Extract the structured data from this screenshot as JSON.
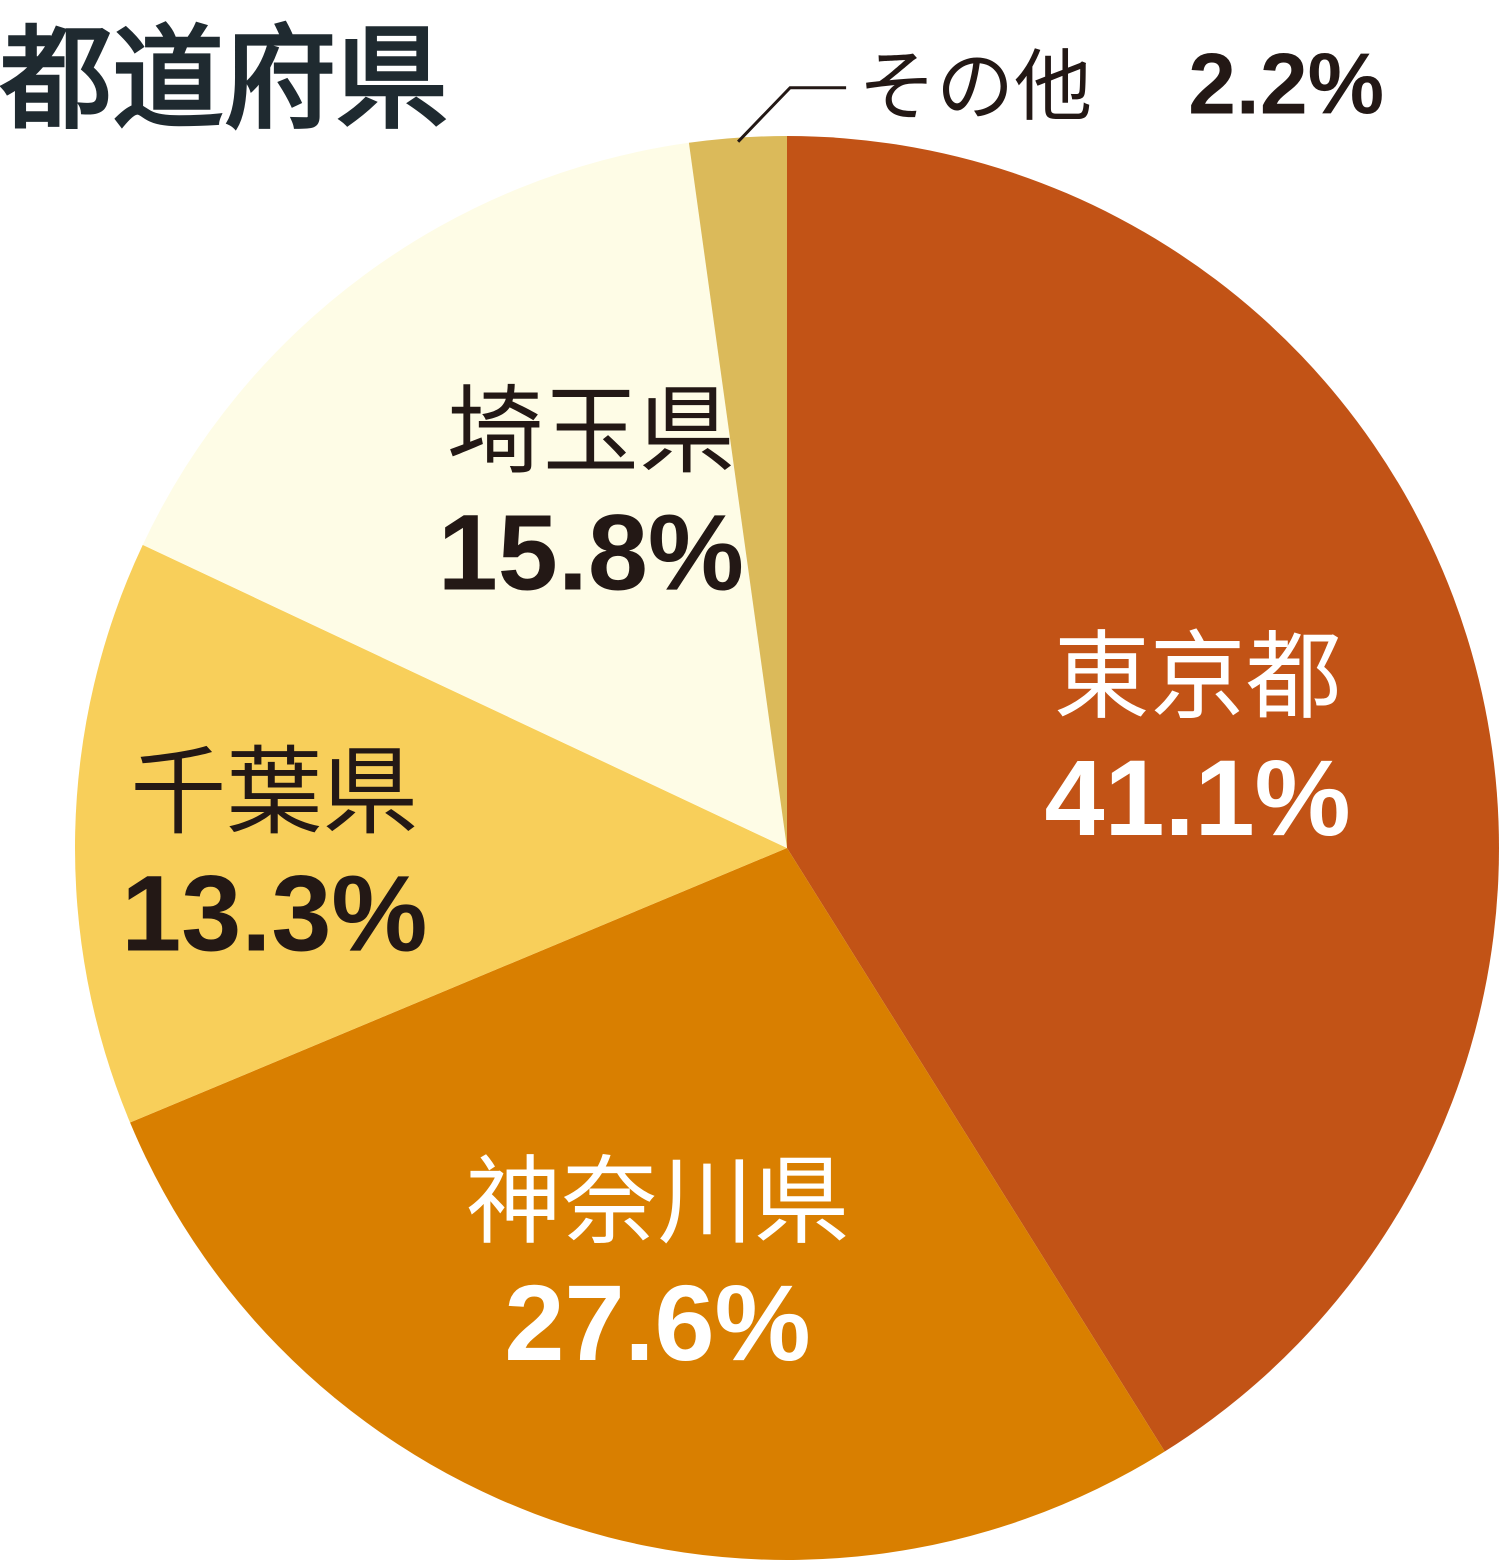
{
  "chart_data": {
    "type": "pie",
    "title": "都道府県",
    "categories": [
      "東京都",
      "神奈川県",
      "千葉県",
      "埼玉県",
      "その他"
    ],
    "values": [
      41.1,
      27.6,
      13.3,
      15.8,
      2.2
    ],
    "value_labels": [
      "41.1%",
      "27.6%",
      "13.3%",
      "15.8%",
      "2.2%"
    ],
    "colors": [
      "#c25316",
      "#d97f00",
      "#f8cf5a",
      "#fefce6",
      "#dbba5a"
    ],
    "label_colors": [
      "#ffffff",
      "#ffffff",
      "#231815",
      "#231815",
      "#231815"
    ],
    "start_direction": "top",
    "order": "clockwise",
    "legend": "none"
  }
}
